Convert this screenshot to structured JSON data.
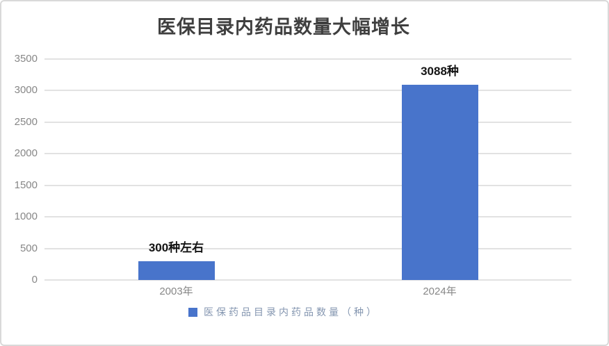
{
  "title": "医保目录内药品数量大幅增长",
  "legend": "医保药品目录内药品数量（种）",
  "colors": {
    "bar": "#4874CB",
    "gridline": "#E2E2E2",
    "axis_text": "#878787",
    "title_text": "#3F3F3F",
    "data_label_text": "#141414",
    "legend_text": "#8496B0",
    "card_border": "#D9D9D9"
  },
  "chart_data": {
    "type": "bar",
    "title": "医保目录内药品数量大幅增长",
    "categories": [
      "2003年",
      "2024年"
    ],
    "values": [
      300,
      3088
    ],
    "bar_labels": [
      "300种左右",
      "3088种"
    ],
    "series_name": "医保药品目录内药品数量（种）",
    "xlabel": "",
    "ylabel": "",
    "ylim": [
      0,
      3500
    ],
    "yticks": [
      0,
      500,
      1000,
      1500,
      2000,
      2500,
      3000,
      3500
    ],
    "grid": true,
    "legend_position": "bottom"
  }
}
